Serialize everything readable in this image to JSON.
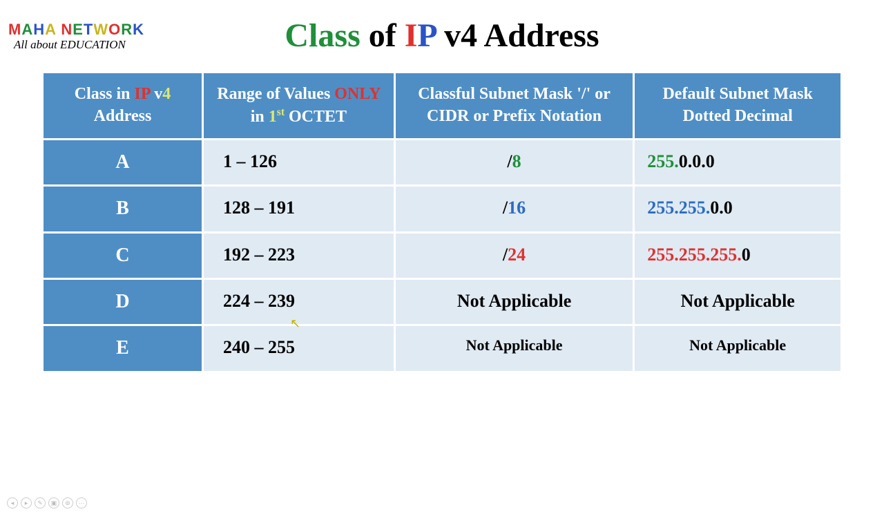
{
  "logo": {
    "letters": [
      {
        "ch": "M",
        "color": "#e0312f"
      },
      {
        "ch": "A",
        "color": "#1f8f3a"
      },
      {
        "ch": "H",
        "color": "#2a53c7"
      },
      {
        "ch": "A",
        "color": "#c7b61e"
      },
      {
        "ch": " ",
        "color": "#000000"
      },
      {
        "ch": "N",
        "color": "#e0312f"
      },
      {
        "ch": "E",
        "color": "#1f8f3a"
      },
      {
        "ch": "T",
        "color": "#2a53c7"
      },
      {
        "ch": "W",
        "color": "#c7b61e"
      },
      {
        "ch": "O",
        "color": "#e0312f"
      },
      {
        "ch": "R",
        "color": "#1f8f3a"
      },
      {
        "ch": "K",
        "color": "#2a53c7"
      }
    ],
    "subtitle": "All about EDUCATION"
  },
  "title": {
    "segments": [
      {
        "text": "Class ",
        "color": "#1f8f3a"
      },
      {
        "text": "of ",
        "color": "#000000"
      },
      {
        "text": "I",
        "color": "#e0312f"
      },
      {
        "text": "P ",
        "color": "#2a53c7"
      },
      {
        "text": "v4 ",
        "color": "#000000"
      },
      {
        "text": "Address",
        "color": "#000000"
      }
    ]
  },
  "table": {
    "col_widths_pct": [
      20,
      24,
      30,
      26
    ],
    "header_bg": "#4f8ec4",
    "header_fg": "#ffffff",
    "body_bg": "#e0eaf3",
    "body_fg": "#000000",
    "headers": [
      {
        "segments": [
          {
            "text": "Class in ",
            "color": "#ffffff"
          },
          {
            "text": "IP ",
            "color": "#e0312f"
          },
          {
            "text": "v",
            "color": "#ffffff"
          },
          {
            "text": "4 ",
            "color": "#dce96f"
          },
          {
            "text": "Address",
            "color": "#ffffff"
          }
        ]
      },
      {
        "segments": [
          {
            "text": "Range of Values ",
            "color": "#ffffff"
          },
          {
            "text": "ONLY",
            "color": "#e0312f"
          },
          {
            "text": " in ",
            "color": "#ffffff"
          },
          {
            "text": "1",
            "color": "#dce96f"
          },
          {
            "text": "st",
            "color": "#dce96f",
            "sup": true
          },
          {
            "text": " OCTET",
            "color": "#ffffff"
          }
        ]
      },
      {
        "segments": [
          {
            "text": "Classful Subnet Mask '/' or CIDR or Prefix Notation",
            "color": "#ffffff"
          }
        ]
      },
      {
        "segments": [
          {
            "text": "Default Subnet Mask Dotted Decimal",
            "color": "#ffffff"
          }
        ]
      }
    ],
    "rows": [
      {
        "class": "A",
        "range": "1  –  126",
        "cidr": [
          {
            "text": "/",
            "color": "#000000"
          },
          {
            "text": "8",
            "color": "#1f8f3a"
          }
        ],
        "mask": [
          {
            "text": "255.",
            "color": "#1f8f3a"
          },
          {
            "text": "0.0.0",
            "color": "#000000"
          }
        ]
      },
      {
        "class": "B",
        "range": "128  –  191",
        "cidr": [
          {
            "text": "/",
            "color": "#000000"
          },
          {
            "text": "16",
            "color": "#2a6cc2"
          }
        ],
        "mask": [
          {
            "text": "255.255.",
            "color": "#2a6cc2"
          },
          {
            "text": "0.0",
            "color": "#000000"
          }
        ]
      },
      {
        "class": "C",
        "range": "192  –  223",
        "cidr": [
          {
            "text": "/",
            "color": "#000000"
          },
          {
            "text": "24",
            "color": "#e0312f"
          }
        ],
        "mask": [
          {
            "text": "255.255.255.",
            "color": "#e0312f"
          },
          {
            "text": "0",
            "color": "#000000"
          }
        ]
      },
      {
        "class": "D",
        "range": "224  –  239",
        "cidr": [
          {
            "text": "Not Applicable",
            "color": "#000000"
          }
        ],
        "mask": [
          {
            "text": "Not Applicable",
            "color": "#000000"
          }
        ],
        "mask_center": true
      },
      {
        "class": "E",
        "range": "240  –  255",
        "cidr": [
          {
            "text": "Not Applicable",
            "color": "#000000"
          }
        ],
        "mask": [
          {
            "text": "Not Applicable",
            "color": "#000000"
          }
        ],
        "smaller": true,
        "mask_center": true
      }
    ]
  },
  "footer_icons": [
    "◂",
    "▸",
    "✎",
    "▣",
    "⊚",
    "⋯"
  ]
}
